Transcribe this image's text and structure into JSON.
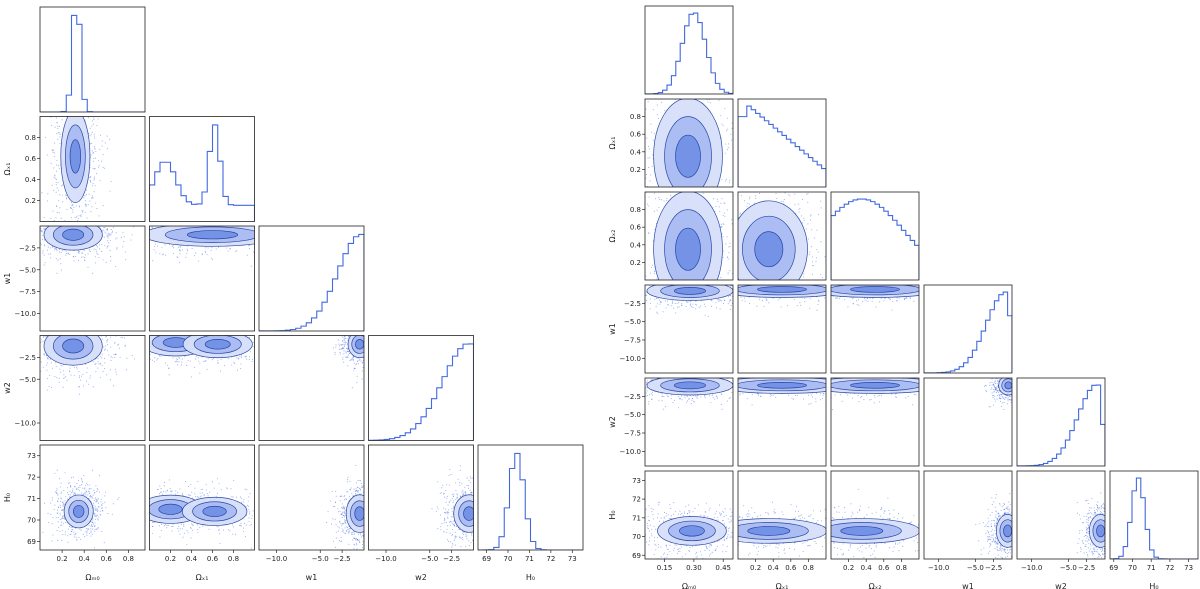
{
  "colors": {
    "main": "#4169e1",
    "fill1": "#d7e0fa",
    "fill2": "#a9bcf2",
    "fill3": "#7391e6",
    "axes": "#222222"
  },
  "chart_data": [
    {
      "type": "corner",
      "params": [
        "Ω_m0",
        "Ω_x1",
        "w1",
        "w2",
        "H_0"
      ],
      "axis_labels": [
        "Ωₘ₀",
        "Ωₓ₁",
        "w1",
        "w2",
        "H₀"
      ],
      "ranges": [
        [
          0.0,
          0.95
        ],
        [
          0.0,
          1.0
        ],
        [
          -12.0,
          0.0
        ],
        [
          -12.0,
          0.0
        ],
        [
          68.6,
          73.5
        ]
      ],
      "ticks": [
        [
          0.2,
          0.4,
          0.6,
          0.8
        ],
        [
          0.2,
          0.4,
          0.6,
          0.8
        ],
        [
          -10.0,
          -7.5,
          -5.0,
          -2.5
        ],
        [
          -10.0,
          -5.0,
          -2.5
        ],
        [
          69,
          70,
          71,
          72,
          73
        ]
      ],
      "xtick_labels": [
        [
          "0.2",
          "0.4",
          "0.6",
          "0.8"
        ],
        [
          "0.2",
          "0.4",
          "0.6",
          "0.8"
        ],
        [
          "−10.0",
          "−5.0",
          "−2.5"
        ],
        [
          "−10.0",
          "−5.0",
          "−2.5"
        ],
        [
          "69",
          "70",
          "71",
          "72",
          "73"
        ]
      ],
      "xtick_values": [
        [
          0.2,
          0.4,
          0.6,
          0.8
        ],
        [
          0.2,
          0.4,
          0.6,
          0.8
        ],
        [
          -10.0,
          -5.0,
          -2.5
        ],
        [
          -10.0,
          -5.0,
          -2.5
        ],
        [
          69,
          70,
          71,
          72,
          73
        ]
      ],
      "ytick_labels": [
        [],
        [
          "0.2",
          "0.4",
          "0.6",
          "0.8"
        ],
        [
          "−10.0",
          "−7.5",
          "−5.0",
          "−2.5"
        ],
        [
          "−10.0",
          "−5.0",
          "−2.5"
        ],
        [
          "69",
          "70",
          "71",
          "72",
          "73"
        ]
      ],
      "ytick_values": [
        [],
        [
          0.2,
          0.4,
          0.6,
          0.8
        ],
        [
          -10.0,
          -7.5,
          -5.0,
          -2.5
        ],
        [
          -10.0,
          -5.0,
          -2.5
        ],
        [
          69,
          70,
          71,
          72,
          73
        ]
      ],
      "marginals": [
        {
          "mean": 0.33,
          "sd": 0.035
        },
        {
          "bimodal": [
            [
              0.15,
              0.1,
              0.55
            ],
            [
              0.62,
              0.05,
              1.0
            ]
          ]
        },
        {
          "mean": -0.3,
          "sd": 0.6,
          "skew_left": 1.5
        },
        {
          "mean": -0.4,
          "sd": 0.7,
          "skew_left": 1.5
        },
        {
          "mean": 70.4,
          "sd": 0.35
        }
      ],
      "pairs": [
        {
          "i": 1,
          "j": 0,
          "centers": [
            [
              0.32,
              0.62
            ]
          ],
          "rx": 0.06,
          "ry": 0.2
        },
        {
          "i": 2,
          "j": 0,
          "centers": [
            [
              0.3,
              -1.0
            ]
          ],
          "rx": 0.12,
          "ry": 0.8
        },
        {
          "i": 2,
          "j": 1,
          "centers": [
            [
              0.6,
              -1.0
            ]
          ],
          "rx": 0.3,
          "ry": 0.6
        },
        {
          "i": 3,
          "j": 0,
          "centers": [
            [
              0.3,
              -1.2
            ]
          ],
          "rx": 0.12,
          "ry": 1.0
        },
        {
          "i": 3,
          "j": 1,
          "centers": [
            [
              0.25,
              -0.8
            ],
            [
              0.65,
              -1.0
            ]
          ],
          "rx": 0.15,
          "ry": 0.7
        },
        {
          "i": 3,
          "j": 2,
          "centers": [
            [
              -0.5,
              -1.0
            ]
          ],
          "rx": 0.6,
          "ry": 0.7
        },
        {
          "i": 4,
          "j": 0,
          "centers": [
            [
              0.35,
              70.4
            ]
          ],
          "rx": 0.06,
          "ry": 0.35
        },
        {
          "i": 4,
          "j": 1,
          "centers": [
            [
              0.2,
              70.5
            ],
            [
              0.62,
              70.4
            ]
          ],
          "rx": 0.14,
          "ry": 0.3
        },
        {
          "i": 4,
          "j": 2,
          "centers": [
            [
              -0.5,
              70.3
            ]
          ],
          "rx": 0.7,
          "ry": 0.4
        },
        {
          "i": 4,
          "j": 3,
          "centers": [
            [
              -0.5,
              70.3
            ]
          ],
          "rx": 0.8,
          "ry": 0.4
        }
      ]
    },
    {
      "type": "corner",
      "params": [
        "Ω_m0",
        "Ω_x1",
        "Ω_x2",
        "w1",
        "w2",
        "H_0"
      ],
      "axis_labels": [
        "Ωₘ₀",
        "Ωₓ₁",
        "Ωₓ₂",
        "w1",
        "w2",
        "H₀"
      ],
      "ranges": [
        [
          0.05,
          0.5
        ],
        [
          0.0,
          1.0
        ],
        [
          0.0,
          1.0
        ],
        [
          -12.0,
          0.0
        ],
        [
          -12.0,
          0.0
        ],
        [
          68.8,
          73.5
        ]
      ],
      "xtick_labels": [
        [
          "0.15",
          "0.30",
          "0.45"
        ],
        [
          "0.2",
          "0.4",
          "0.6",
          "0.8"
        ],
        [
          "0.2",
          "0.4",
          "0.6",
          "0.8"
        ],
        [
          "−10.0",
          "−5.0",
          "−2.5"
        ],
        [
          "−10.0",
          "−5.0",
          "−2.5"
        ],
        [
          "69",
          "70",
          "71",
          "72",
          "73"
        ]
      ],
      "xtick_values": [
        [
          0.15,
          0.3,
          0.45
        ],
        [
          0.2,
          0.4,
          0.6,
          0.8
        ],
        [
          0.2,
          0.4,
          0.6,
          0.8
        ],
        [
          -10.0,
          -5.0,
          -2.5
        ],
        [
          -10.0,
          -5.0,
          -2.5
        ],
        [
          69,
          70,
          71,
          72,
          73
        ]
      ],
      "ytick_labels": [
        [],
        [
          "0.2",
          "0.4",
          "0.6",
          "0.8"
        ],
        [
          "0.2",
          "0.4",
          "0.6",
          "0.8"
        ],
        [
          "−10.0",
          "−7.5",
          "−5.0",
          "−2.5"
        ],
        [
          "−10.0",
          "−7.5",
          "−5.0",
          "−2.5"
        ],
        [
          "69",
          "70",
          "71",
          "72",
          "73"
        ]
      ],
      "ytick_values": [
        [],
        [
          0.2,
          0.4,
          0.6,
          0.8
        ],
        [
          0.2,
          0.4,
          0.6,
          0.8
        ],
        [
          -10.0,
          -7.5,
          -5.0,
          -2.5
        ],
        [
          -10.0,
          -7.5,
          -5.0,
          -2.5
        ],
        [
          69,
          70,
          71,
          72,
          73
        ]
      ],
      "marginals": [
        {
          "mean": 0.3,
          "sd": 0.06
        },
        {
          "decreasing": true
        },
        {
          "hump": [
            0.35,
            0.3
          ]
        },
        {
          "mean": -0.8,
          "sd": 0.6,
          "skew_left": 1.5
        },
        {
          "mean": -1.0,
          "sd": 0.6,
          "skew_left": 1.5
        },
        {
          "mean": 70.3,
          "sd": 0.35
        }
      ],
      "pairs": [
        {
          "i": 1,
          "j": 0,
          "centers": [
            [
              0.27,
              0.35
            ]
          ],
          "rx": 0.08,
          "ry": 0.3
        },
        {
          "i": 2,
          "j": 0,
          "centers": [
            [
              0.27,
              0.35
            ]
          ],
          "rx": 0.08,
          "ry": 0.3
        },
        {
          "i": 2,
          "j": 1,
          "centers": [
            [
              0.35,
              0.35
            ]
          ],
          "rx": 0.2,
          "ry": 0.25
        },
        {
          "i": 3,
          "j": 0,
          "centers": [
            [
              0.28,
              -0.8
            ]
          ],
          "rx": 0.1,
          "ry": 0.6
        },
        {
          "i": 3,
          "j": 1,
          "centers": [
            [
              0.5,
              -0.6
            ]
          ],
          "rx": 0.35,
          "ry": 0.5
        },
        {
          "i": 3,
          "j": 2,
          "centers": [
            [
              0.5,
              -0.6
            ]
          ],
          "rx": 0.35,
          "ry": 0.5
        },
        {
          "i": 4,
          "j": 0,
          "centers": [
            [
              0.28,
              -1.0
            ]
          ],
          "rx": 0.1,
          "ry": 0.6
        },
        {
          "i": 4,
          "j": 1,
          "centers": [
            [
              0.5,
              -1.0
            ]
          ],
          "rx": 0.35,
          "ry": 0.5
        },
        {
          "i": 4,
          "j": 2,
          "centers": [
            [
              0.5,
              -1.0
            ]
          ],
          "rx": 0.35,
          "ry": 0.5
        },
        {
          "i": 4,
          "j": 3,
          "centers": [
            [
              -0.5,
              -1.0
            ]
          ],
          "rx": 0.6,
          "ry": 0.6
        },
        {
          "i": 5,
          "j": 0,
          "centers": [
            [
              0.29,
              70.3
            ]
          ],
          "rx": 0.08,
          "ry": 0.35
        },
        {
          "i": 5,
          "j": 1,
          "centers": [
            [
              0.35,
              70.3
            ]
          ],
          "rx": 0.3,
          "ry": 0.3
        },
        {
          "i": 5,
          "j": 2,
          "centers": [
            [
              0.35,
              70.3
            ]
          ],
          "rx": 0.3,
          "ry": 0.3
        },
        {
          "i": 5,
          "j": 3,
          "centers": [
            [
              -0.6,
              70.3
            ]
          ],
          "rx": 0.7,
          "ry": 0.4
        },
        {
          "i": 5,
          "j": 4,
          "centers": [
            [
              -0.6,
              70.3
            ]
          ],
          "rx": 0.7,
          "ry": 0.4
        }
      ]
    }
  ]
}
